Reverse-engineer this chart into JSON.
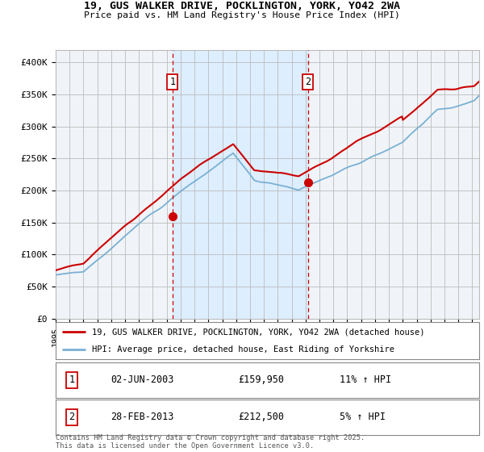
{
  "title_line1": "19, GUS WALKER DRIVE, POCKLINGTON, YORK, YO42 2WA",
  "title_line2": "Price paid vs. HM Land Registry's House Price Index (HPI)",
  "ylabel_ticks": [
    "£0",
    "£50K",
    "£100K",
    "£150K",
    "£200K",
    "£250K",
    "£300K",
    "£350K",
    "£400K"
  ],
  "ytick_values": [
    0,
    50000,
    100000,
    150000,
    200000,
    250000,
    300000,
    350000,
    400000
  ],
  "xlim_start": 1995.0,
  "xlim_end": 2025.5,
  "ylim": [
    0,
    420000
  ],
  "marker1_x": 2003.42,
  "marker1_y": 159950,
  "marker2_x": 2013.16,
  "marker2_y": 212500,
  "marker1_label": "02-JUN-2003",
  "marker2_label": "28-FEB-2013",
  "marker1_price": "£159,950",
  "marker2_price": "£212,500",
  "marker1_hpi": "11% ↑ HPI",
  "marker2_hpi": "5% ↑ HPI",
  "legend_line1": "19, GUS WALKER DRIVE, POCKLINGTON, YORK, YO42 2WA (detached house)",
  "legend_line2": "HPI: Average price, detached house, East Riding of Yorkshire",
  "footer": "Contains HM Land Registry data © Crown copyright and database right 2025.\nThis data is licensed under the Open Government Licence v3.0.",
  "red_color": "#cc0000",
  "blue_color": "#7ab0d4",
  "shade_color": "#ddeeff",
  "background_color": "#f0f4f8",
  "grid_color": "#bbbbbb"
}
